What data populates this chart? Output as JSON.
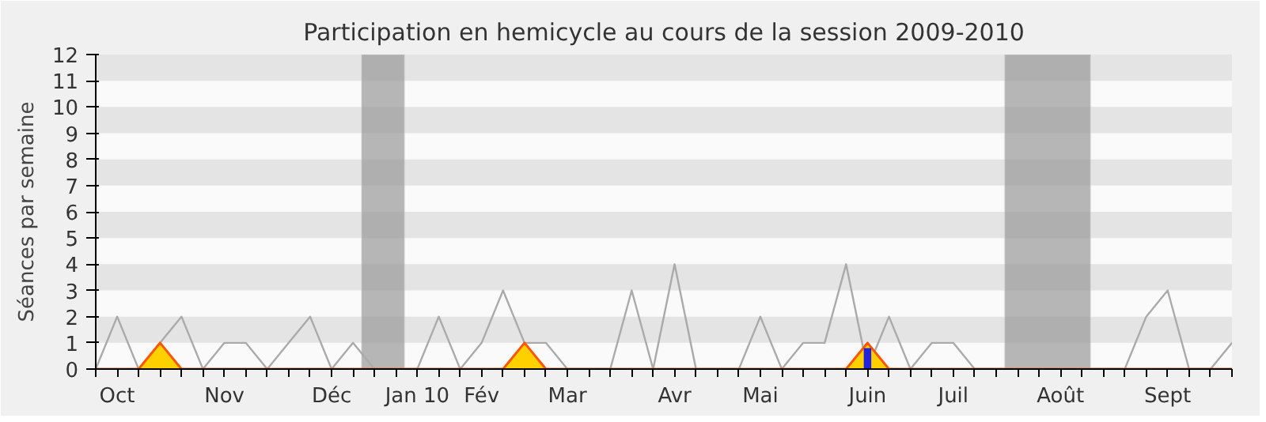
{
  "chart_data": {
    "type": "line",
    "title": "Participation en hemicycle au cours de la session 2009-2010",
    "ylabel": "Séances par semaine",
    "categories": [
      null,
      "Oct",
      null,
      null,
      null,
      null,
      "Nov",
      null,
      null,
      null,
      null,
      "Déc",
      null,
      null,
      null,
      "Jan 10",
      null,
      null,
      "Fév",
      null,
      null,
      null,
      "Mar",
      null,
      null,
      null,
      null,
      "Avr",
      null,
      null,
      null,
      "Mai",
      null,
      null,
      null,
      null,
      "Juin",
      null,
      null,
      null,
      "Juil",
      null,
      null,
      null,
      null,
      "Août",
      null,
      null,
      null,
      null,
      "Sept",
      null,
      null,
      null
    ],
    "series": [
      {
        "color": "#aaaaaa",
        "values": [
          0,
          2,
          0,
          1,
          2,
          0,
          1,
          1,
          0,
          1,
          2,
          0,
          1,
          0,
          0,
          0,
          2,
          0,
          1,
          3,
          1,
          1,
          0,
          0,
          0,
          3,
          0,
          4,
          0,
          0,
          0,
          2,
          0,
          1,
          1,
          4,
          0,
          2,
          0,
          1,
          1,
          0,
          0,
          0,
          0,
          0,
          0,
          0,
          0,
          2,
          3,
          0,
          0,
          1
        ]
      },
      {
        "type": "area",
        "color": "#ffd000",
        "values": [
          0,
          0,
          0,
          1,
          0,
          0,
          0,
          0,
          0,
          0,
          0,
          0,
          0,
          0,
          0,
          0,
          0,
          0,
          0,
          0,
          1,
          0,
          0,
          0,
          0,
          0,
          0,
          0,
          0,
          0,
          0,
          0,
          0,
          0,
          0,
          0,
          1,
          0,
          0,
          0,
          0,
          0,
          0,
          0,
          0,
          0,
          0,
          0,
          0,
          0,
          0,
          0,
          0,
          0
        ]
      },
      {
        "type": "bar",
        "color": "#2222dd",
        "values": [
          null,
          null,
          null,
          null,
          null,
          null,
          null,
          null,
          null,
          null,
          null,
          null,
          null,
          null,
          null,
          null,
          null,
          null,
          null,
          null,
          null,
          null,
          null,
          null,
          null,
          null,
          null,
          null,
          null,
          null,
          null,
          null,
          null,
          null,
          null,
          null,
          0.8,
          null,
          null,
          null,
          null,
          null,
          null,
          null,
          null,
          null,
          null,
          null,
          null,
          null,
          null,
          null,
          null,
          null
        ]
      }
    ],
    "ylim": [
      0,
      12
    ],
    "yticks": [
      0,
      1,
      2,
      3,
      4,
      5,
      6,
      7,
      8,
      9,
      10,
      11,
      12
    ]
  }
}
